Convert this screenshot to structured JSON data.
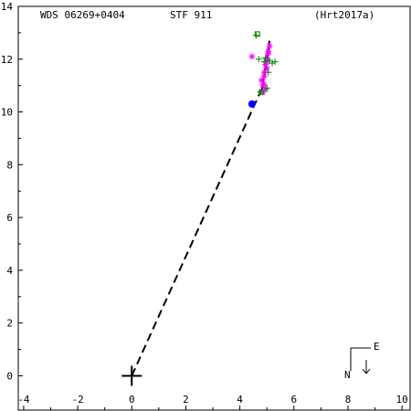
{
  "header": {
    "left": "WDS 06269+0404",
    "center": "STF 911",
    "right": "(Hrt2017a)"
  },
  "compass": {
    "east": "E",
    "north": "N"
  },
  "colors": {
    "axis": "#000000",
    "orbit_line": "#000000",
    "magenta_obs": "#ff00ff",
    "green_obs": "#008800",
    "primary_marker": "#0000ff",
    "background": "#ffffff"
  },
  "chart_data": {
    "type": "scatter",
    "xlim": [
      -4.2,
      10.3
    ],
    "ylim": [
      -1.3,
      14
    ],
    "x_ticks": [
      -4,
      -2,
      0,
      2,
      4,
      6,
      8,
      10
    ],
    "y_ticks": [
      0,
      2,
      4,
      6,
      8,
      10,
      12,
      14
    ],
    "x_tick_labels": [
      "-4",
      "-2",
      "0",
      "2",
      "4",
      "6",
      "8",
      "10"
    ],
    "y_tick_labels": [
      "0",
      "2",
      "4",
      "6",
      "8",
      "10",
      "12",
      "14"
    ],
    "primary": {
      "x": 0,
      "y": 0
    },
    "connector": {
      "from": [
        0,
        0
      ],
      "to": [
        4.8,
        10.85
      ],
      "style": "dashed"
    },
    "latest_position": {
      "x": 4.45,
      "y": 10.3
    },
    "orbit_segment": {
      "from": [
        4.82,
        10.85
      ],
      "to": [
        5.1,
        12.7
      ]
    },
    "series": [
      {
        "marker": "asterisk",
        "points": [
          [
            4.45,
            12.1
          ],
          [
            4.8,
            11.2
          ],
          [
            4.85,
            11.0
          ],
          [
            4.9,
            11.5
          ],
          [
            4.95,
            11.8
          ],
          [
            5.0,
            12.0
          ],
          [
            5.05,
            12.3
          ],
          [
            5.1,
            12.5
          ],
          [
            4.95,
            10.85
          ],
          [
            4.9,
            11.35
          ],
          [
            5.0,
            11.65
          ],
          [
            4.85,
            10.75
          ],
          [
            5.05,
            12.2
          ],
          [
            4.9,
            11.05
          ],
          [
            5.0,
            11.9
          ]
        ]
      },
      {
        "marker": "plus",
        "points": [
          [
            4.6,
            12.9
          ],
          [
            4.7,
            12.0
          ],
          [
            4.9,
            11.9
          ],
          [
            5.2,
            11.85
          ],
          [
            5.3,
            11.9
          ],
          [
            5.05,
            11.5
          ],
          [
            5.0,
            10.9
          ],
          [
            4.75,
            10.75
          ],
          [
            5.1,
            11.95
          ],
          [
            4.95,
            12.05
          ]
        ]
      },
      {
        "marker": "square",
        "points": [
          [
            4.65,
            12.95
          ],
          [
            4.8,
            10.75
          ]
        ]
      }
    ]
  }
}
